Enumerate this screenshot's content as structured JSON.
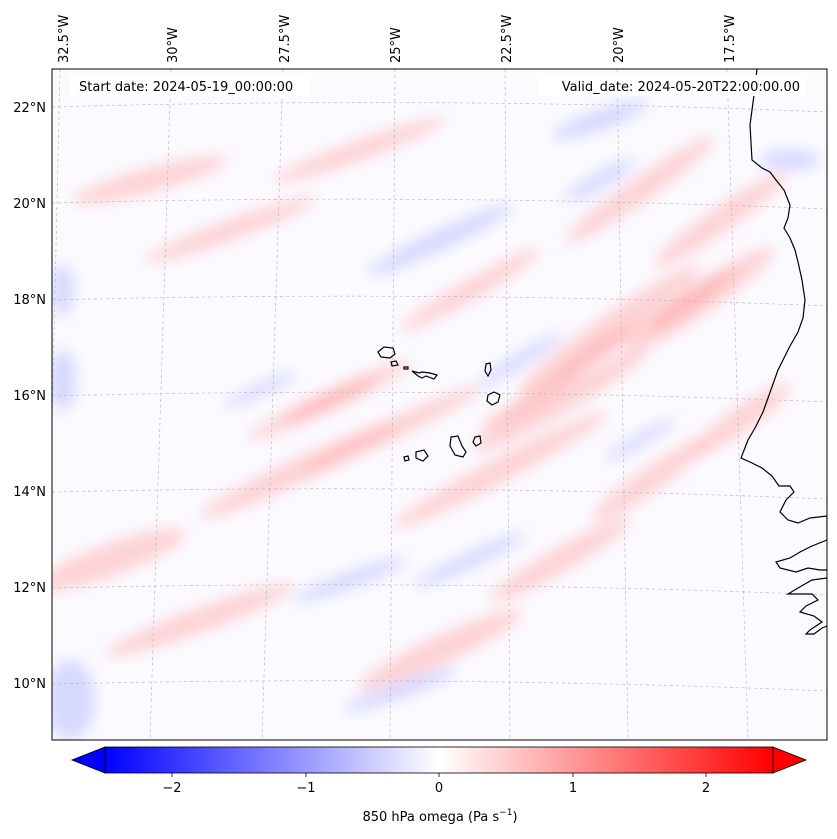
{
  "header": {
    "start_label": "Start date: 2024-05-19_00:00:00",
    "valid_label": "Valid_date: 2024-05-20T22:00:00.00"
  },
  "longitude_labels": [
    "32.5°W",
    "30°W",
    "27.5°W",
    "25°W",
    "22.5°W",
    "20°W",
    "17.5°W"
  ],
  "latitude_labels": [
    "22°N",
    "20°N",
    "18°N",
    "16°N",
    "14°N",
    "12°N",
    "10°N"
  ],
  "colorbar": {
    "label_text": "850 hPa omega (Pa s",
    "label_exponent": "−1",
    "label_close": ")",
    "ticks": [
      "−2",
      "−1",
      "0",
      "1",
      "2"
    ],
    "range": [
      -2.5,
      2.5
    ],
    "extend": "both",
    "colormap": "bwr"
  },
  "colors": {
    "coastline": "#000000",
    "gridline": "#bbbbbb",
    "positive": "#ff0000",
    "negative": "#0000ff",
    "neutral": "#ffffff"
  }
}
